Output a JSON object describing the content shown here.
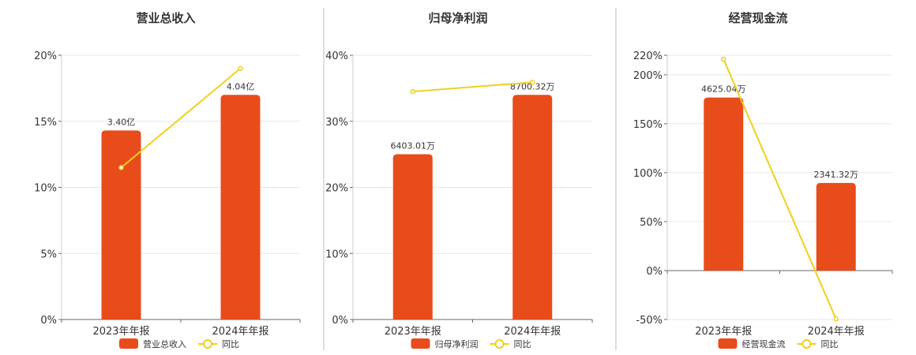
{
  "colors": {
    "bar": "#e84c1b",
    "line": "#f1cf1a",
    "text": "#333333",
    "grid": "#e6e6e6"
  },
  "chart_data": [
    {
      "type": "bar",
      "title": "营业总收入",
      "categories": [
        "2023年年报",
        "2024年年报"
      ],
      "series": [
        {
          "name": "营业总收入",
          "type": "bar",
          "values": [
            3.4,
            4.04
          ],
          "value_unit": "亿",
          "data_labels": [
            "3.40亿",
            "4.04亿"
          ]
        },
        {
          "name": "同比",
          "type": "line",
          "values": [
            11.5,
            19.0
          ]
        }
      ],
      "ylim": [
        0,
        20
      ],
      "yticks": [
        0,
        5,
        10,
        15,
        20
      ],
      "ytick_labels": [
        "0%",
        "5%",
        "10%",
        "15%",
        "20%"
      ],
      "legend_position": "bottom"
    },
    {
      "type": "bar",
      "title": "归母净利润",
      "categories": [
        "2023年年报",
        "2024年年报"
      ],
      "series": [
        {
          "name": "归母净利润",
          "type": "bar",
          "values": [
            6403.01,
            8700.32
          ],
          "value_unit": "万",
          "data_labels": [
            "6403.01万",
            "8700.32万"
          ]
        },
        {
          "name": "同比",
          "type": "line",
          "values": [
            34.5,
            35.9
          ]
        }
      ],
      "ylim": [
        0,
        40
      ],
      "yticks": [
        0,
        10,
        20,
        30,
        40
      ],
      "ytick_labels": [
        "0%",
        "10%",
        "20%",
        "30%",
        "40%"
      ],
      "legend_position": "bottom"
    },
    {
      "type": "bar",
      "title": "经营现金流",
      "categories": [
        "2023年年报",
        "2024年年报"
      ],
      "series": [
        {
          "name": "经营现金流",
          "type": "bar",
          "values": [
            4625.04,
            2341.32
          ],
          "value_unit": "万",
          "data_labels": [
            "4625.04万",
            "2341.32万"
          ]
        },
        {
          "name": "同比",
          "type": "line",
          "values": [
            216,
            -49.5
          ]
        }
      ],
      "ylim": [
        -50,
        220
      ],
      "yticks": [
        -50,
        0,
        50,
        100,
        150,
        200,
        220
      ],
      "ytick_labels": [
        "-50%",
        "0%",
        "50%",
        "100%",
        "150%",
        "200%",
        "220%"
      ],
      "legend_position": "bottom"
    }
  ]
}
